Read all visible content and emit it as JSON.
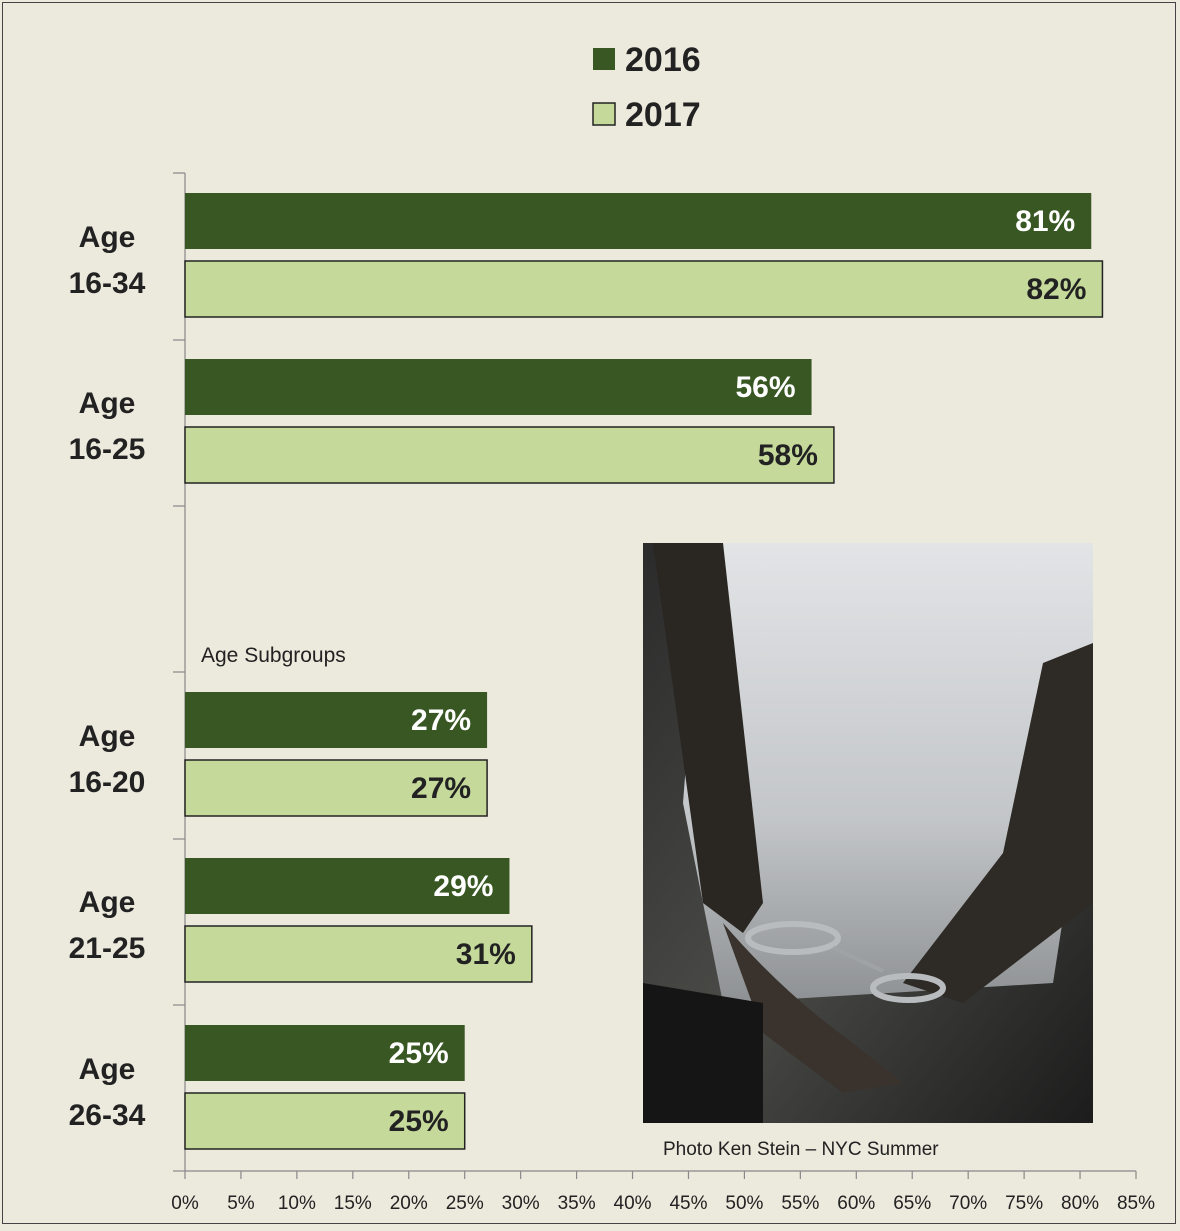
{
  "chart_data": {
    "type": "bar",
    "orientation": "horizontal",
    "legend_position": "top",
    "series": [
      {
        "name": "2016",
        "color": "#385723",
        "label_color": "#ffffff",
        "values": [
          81,
          56,
          27,
          29,
          25
        ]
      },
      {
        "name": "2017",
        "color": "#c5d99b",
        "label_color": "#222222",
        "values": [
          82,
          58,
          27,
          31,
          25
        ]
      }
    ],
    "categories": [
      {
        "line1": "Age",
        "line2": "16-34"
      },
      {
        "line1": "Age",
        "line2": "16-25"
      },
      {
        "line1": "Age",
        "line2": "16-20"
      },
      {
        "line1": "Age",
        "line2": "21-25"
      },
      {
        "line1": "Age",
        "line2": "26-34"
      }
    ],
    "value_labels": {
      "2016": [
        "81%",
        "56%",
        "27%",
        "29%",
        "25%"
      ],
      "2017": [
        "82%",
        "58%",
        "27%",
        "31%",
        "25%"
      ]
    },
    "xlim": [
      0,
      85
    ],
    "xticks": [
      "0%",
      "5%",
      "10%",
      "15%",
      "20%",
      "25%",
      "30%",
      "35%",
      "40%",
      "45%",
      "50%",
      "55%",
      "60%",
      "65%",
      "70%",
      "75%",
      "80%",
      "85%"
    ],
    "grid": false,
    "annotation": "Age Subgroups"
  },
  "photo": {
    "caption": "Photo Ken Stein – NYC Summer"
  }
}
